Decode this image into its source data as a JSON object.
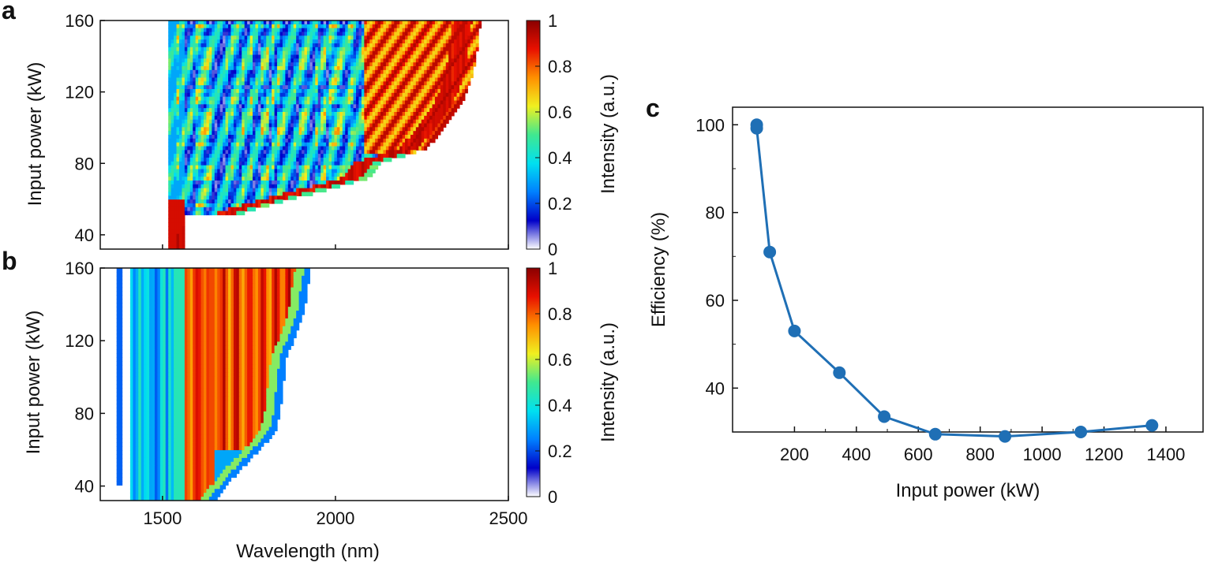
{
  "panels": {
    "a": "a",
    "b": "b",
    "c": "c"
  },
  "colormap": [
    "#ffffff",
    "#0000c8",
    "#0080ff",
    "#00e0f0",
    "#40e890",
    "#f0f020",
    "#ff9000",
    "#e81000",
    "#8a0000"
  ],
  "chart_data": [
    {
      "id": "a",
      "type": "heatmap",
      "title": "",
      "xlabel": "",
      "ylabel": "Input power (kW)",
      "xlim": [
        1320,
        2500
      ],
      "ylim": [
        32,
        160
      ],
      "yticks": [
        "40",
        "80",
        "120",
        "160"
      ],
      "colorbar": {
        "label": "Intensity (a.u.)",
        "range": [
          0,
          1
        ],
        "ticks": [
          "0",
          "0.2",
          "0.4",
          "0.6",
          "0.8",
          "1"
        ]
      },
      "threshold": {
        "powers": [
          32,
          48,
          56,
          64,
          72,
          80,
          88,
          96,
          104,
          112,
          120,
          132,
          144,
          160
        ],
        "wavelengths": [
          1580,
          1660,
          1800,
          1950,
          2100,
          2130,
          2260,
          2300,
          2330,
          2360,
          2380,
          2400,
          2410,
          2420
        ]
      }
    },
    {
      "id": "b",
      "type": "heatmap",
      "title": "",
      "xlabel": "Wavelength (nm)",
      "ylabel": "Input power (kW)",
      "xlim": [
        1320,
        2500
      ],
      "xticks": [
        "1500",
        "2000",
        "2500"
      ],
      "ylim": [
        32,
        160
      ],
      "yticks": [
        "40",
        "80",
        "120",
        "160"
      ],
      "colorbar": {
        "label": "Intensity (a.u.)",
        "range": [
          0,
          1
        ],
        "ticks": [
          "0",
          "0.2",
          "0.4",
          "0.6",
          "0.8",
          "1"
        ]
      },
      "edge": {
        "powers": [
          32,
          48,
          64,
          72,
          80,
          96,
          112,
          120,
          136,
          150,
          160
        ],
        "wavelengths": [
          1650,
          1720,
          1800,
          1830,
          1840,
          1850,
          1860,
          1880,
          1910,
          1920,
          1930
        ]
      }
    },
    {
      "id": "c",
      "type": "line",
      "title": "",
      "xlabel": "Input power (kW)",
      "ylabel": "Efficiency (%)",
      "xlim": [
        0,
        1520
      ],
      "ylim": [
        30,
        104
      ],
      "xticks": [
        "200",
        "400",
        "600",
        "800",
        "1000",
        "1200",
        "1400"
      ],
      "yticks": [
        "40",
        "60",
        "80",
        "100"
      ],
      "color": "#1f6fb5",
      "series": [
        {
          "name": "Efficiency",
          "x": [
            78,
            78,
            120,
            200,
            345,
            490,
            655,
            880,
            1125,
            1355
          ],
          "y": [
            100,
            99.2,
            71,
            53,
            43.5,
            33.5,
            29.5,
            29,
            30,
            31.5
          ]
        }
      ]
    }
  ]
}
